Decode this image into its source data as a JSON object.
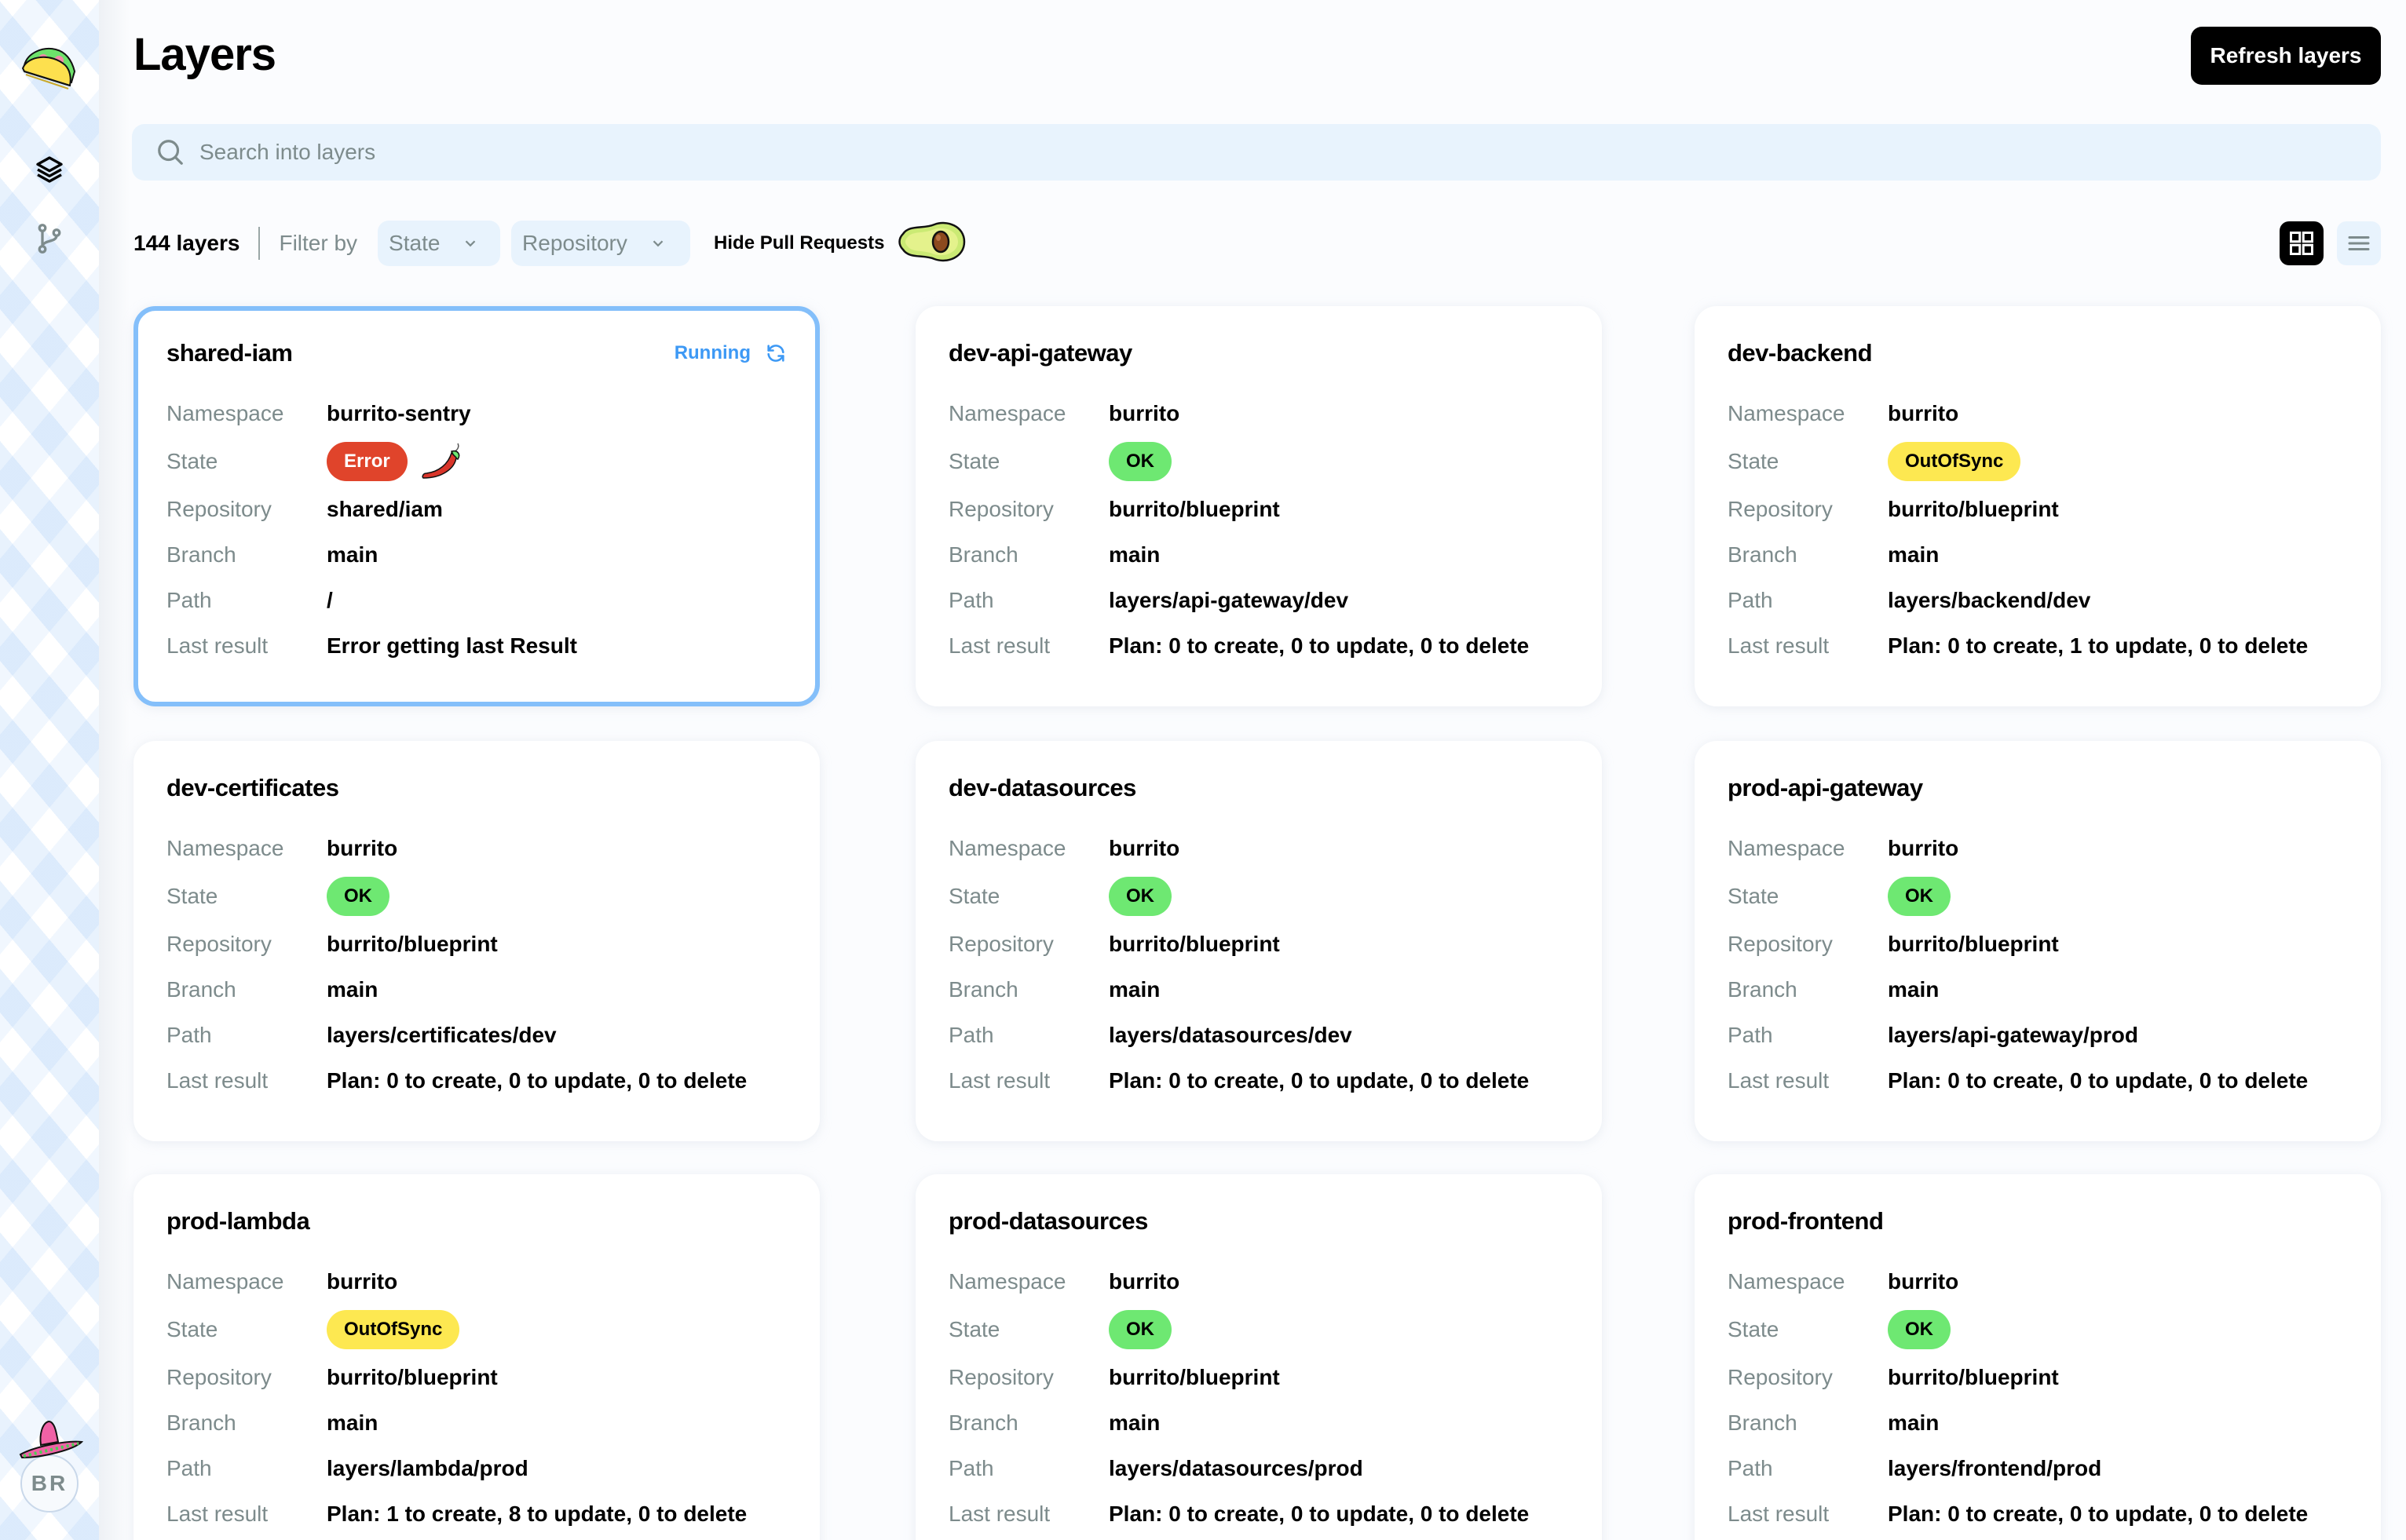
{
  "sidebar": {
    "logo": "taco-logo",
    "nav": [
      {
        "id": "layers",
        "icon": "layers-icon"
      },
      {
        "id": "repositories",
        "icon": "git-branch-icon"
      }
    ],
    "user": {
      "initials": "BR",
      "decoration": "sombrero-icon"
    }
  },
  "header": {
    "title": "Layers",
    "refresh_label": "Refresh layers"
  },
  "search": {
    "placeholder": "Search into layers",
    "value": ""
  },
  "filters": {
    "count": "144 layers",
    "filter_by_label": "Filter by",
    "state_select": "State",
    "repository_select": "Repository",
    "hide_pr_label": "Hide Pull Requests",
    "hide_pr_enabled": true
  },
  "view": {
    "active": "grid",
    "options": [
      "grid",
      "list"
    ]
  },
  "labels": {
    "namespace": "Namespace",
    "state": "State",
    "repository": "Repository",
    "branch": "Branch",
    "path": "Path",
    "last_result": "Last result"
  },
  "colors": {
    "accent_blue": "#3d99f5",
    "active_border": "#84bffa",
    "error": "#e0442b",
    "ok": "#6ee872",
    "outofsync": "#fde851",
    "muted_text": "#7d8b8c",
    "search_bg": "#e8f3fd"
  },
  "layers": [
    {
      "name": "shared-iam",
      "running": "Running",
      "namespace": "burrito-sentry",
      "state": "Error",
      "repository": "shared/iam",
      "branch": "main",
      "path": "/",
      "last_result": "Error getting last Result"
    },
    {
      "name": "dev-api-gateway",
      "namespace": "burrito",
      "state": "OK",
      "repository": "burrito/blueprint",
      "branch": "main",
      "path": "layers/api-gateway/dev",
      "last_result": "Plan: 0 to create, 0 to update, 0 to delete"
    },
    {
      "name": "dev-backend",
      "namespace": "burrito",
      "state": "OutOfSync",
      "repository": "burrito/blueprint",
      "branch": "main",
      "path": "layers/backend/dev",
      "last_result": "Plan: 0 to create, 1 to update, 0 to delete"
    },
    {
      "name": "dev-certificates",
      "namespace": "burrito",
      "state": "OK",
      "repository": "burrito/blueprint",
      "branch": "main",
      "path": "layers/certificates/dev",
      "last_result": "Plan: 0 to create, 0 to update, 0 to delete"
    },
    {
      "name": "dev-datasources",
      "namespace": "burrito",
      "state": "OK",
      "repository": "burrito/blueprint",
      "branch": "main",
      "path": "layers/datasources/dev",
      "last_result": "Plan: 0 to create, 0 to update, 0 to delete"
    },
    {
      "name": "prod-api-gateway",
      "namespace": "burrito",
      "state": "OK",
      "repository": "burrito/blueprint",
      "branch": "main",
      "path": "layers/api-gateway/prod",
      "last_result": "Plan: 0 to create, 0 to update, 0 to delete"
    },
    {
      "name": "prod-lambda",
      "namespace": "burrito",
      "state": "OutOfSync",
      "repository": "burrito/blueprint",
      "branch": "main",
      "path": "layers/lambda/prod",
      "last_result": "Plan: 1 to create, 8 to update, 0 to delete"
    },
    {
      "name": "prod-datasources",
      "namespace": "burrito",
      "state": "OK",
      "repository": "burrito/blueprint",
      "branch": "main",
      "path": "layers/datasources/prod",
      "last_result": "Plan: 0 to create, 0 to update, 0 to delete"
    },
    {
      "name": "prod-frontend",
      "namespace": "burrito",
      "state": "OK",
      "repository": "burrito/blueprint",
      "branch": "main",
      "path": "layers/frontend/prod",
      "last_result": "Plan: 0 to create, 0 to update, 0 to delete"
    }
  ]
}
